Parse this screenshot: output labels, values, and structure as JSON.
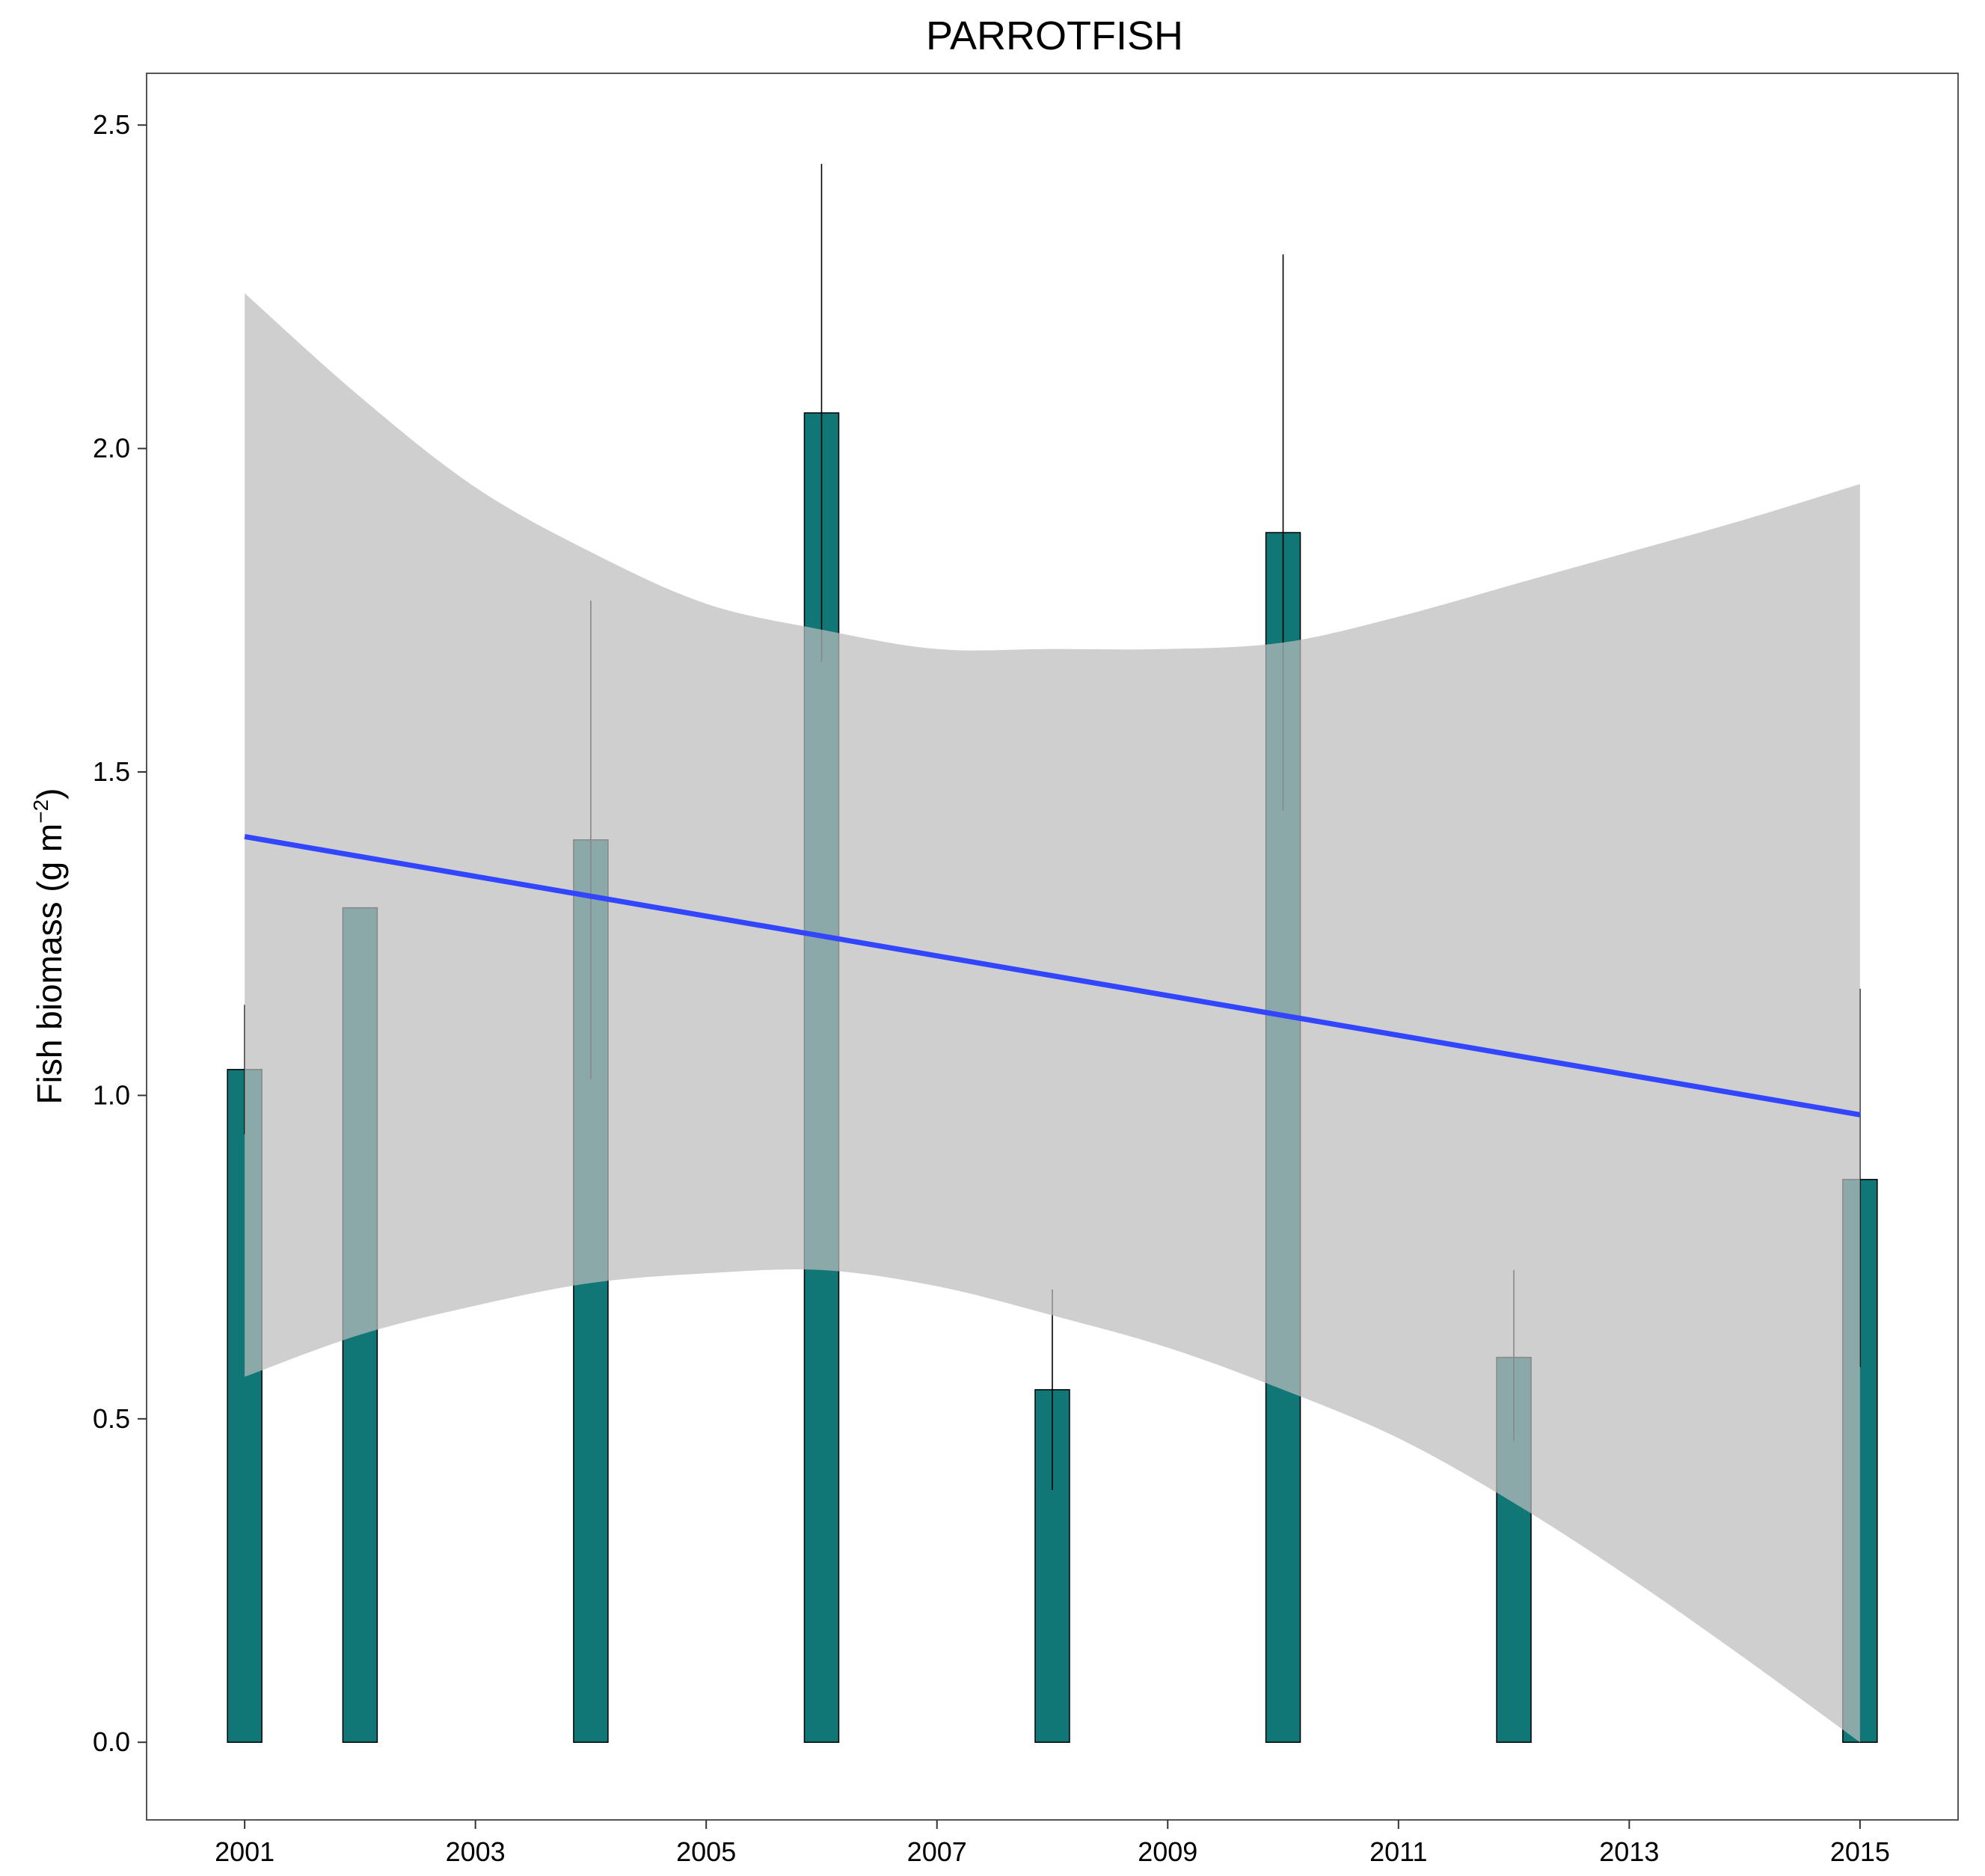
{
  "chart_data": {
    "type": "bar",
    "title": "PARROTFISH",
    "xlabel": "",
    "ylabel": {
      "prefix": "Fish biomass (g m",
      "superscript": "−2",
      "suffix": ")"
    },
    "x_ticks": [
      "2001",
      "2003",
      "2005",
      "2007",
      "2009",
      "2011",
      "2013",
      "2015"
    ],
    "y_ticks": [
      "0.0",
      "0.5",
      "1.0",
      "1.5",
      "2.0",
      "2.5"
    ],
    "xlim": [
      2000.15,
      2015.85
    ],
    "ylim": [
      -0.12,
      2.58
    ],
    "grid": false,
    "legend": "none",
    "colors": {
      "bar_fill": "#107676",
      "bar_stroke": "#000000",
      "ribbon": "#bdbdbd",
      "trend_line": "#3346ff",
      "error_bar": "#000000",
      "panel_border": "#555555"
    },
    "bars": [
      {
        "x": 2001,
        "value": 1.04,
        "err_low": 0.94,
        "err_high": 1.14
      },
      {
        "x": 2002,
        "value": 1.29,
        "err_low": null,
        "err_high": null
      },
      {
        "x": 2004,
        "value": 1.395,
        "err_low": 1.025,
        "err_high": 1.765
      },
      {
        "x": 2006,
        "value": 2.055,
        "err_low": 1.67,
        "err_high": 2.44
      },
      {
        "x": 2008,
        "value": 0.545,
        "err_low": 0.39,
        "err_high": 0.7
      },
      {
        "x": 2010,
        "value": 1.87,
        "err_low": 1.44,
        "err_high": 2.3
      },
      {
        "x": 2012,
        "value": 0.595,
        "err_low": 0.465,
        "err_high": 0.73
      },
      {
        "x": 2015,
        "value": 0.87,
        "err_low": 0.58,
        "err_high": 1.165
      }
    ],
    "trend": {
      "x": [
        2001,
        2015
      ],
      "y": [
        1.4,
        0.97
      ]
    },
    "confidence_band": {
      "x": [
        2001,
        2002,
        2003,
        2004,
        2005,
        2006,
        2007,
        2008,
        2009,
        2010,
        2011,
        2012,
        2013,
        2014,
        2015
      ],
      "upper": [
        2.24,
        2.08,
        1.94,
        1.84,
        1.76,
        1.72,
        1.69,
        1.69,
        1.69,
        1.7,
        1.74,
        1.79,
        1.84,
        1.89,
        1.945
      ],
      "lower": [
        0.565,
        0.63,
        0.675,
        0.71,
        0.725,
        0.73,
        0.705,
        0.66,
        0.61,
        0.545,
        0.47,
        0.37,
        0.255,
        0.13,
        0.0
      ]
    }
  }
}
